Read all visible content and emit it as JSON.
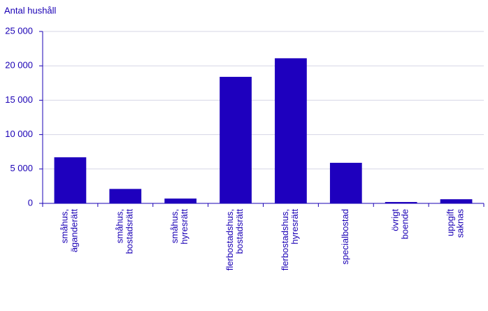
{
  "chart_data": {
    "type": "bar",
    "y_label": "Antal hushåll",
    "categories": [
      "småhus, äganderätt",
      "småhus, bostadsrätt",
      "småhus, hyresrätt",
      "flerbostadshus, bostadsrätt",
      "flerbostadshus, hyresrätt",
      "specialbostad",
      "övrigt boende",
      "uppgift saknas"
    ],
    "values": [
      6700,
      2100,
      700,
      18400,
      21100,
      5900,
      200,
      600
    ],
    "color": "#1e00be",
    "ylim": [
      0,
      25000
    ],
    "yticks": [
      0,
      {
        "value": 5000,
        "label": "5 000"
      },
      {
        "value": 10000,
        "label": "10 000"
      },
      {
        "value": 15000,
        "label": "15 000"
      },
      {
        "value": 20000,
        "label": "20 000"
      },
      {
        "value": 25000,
        "label": "25 000"
      }
    ],
    "grid": true
  }
}
